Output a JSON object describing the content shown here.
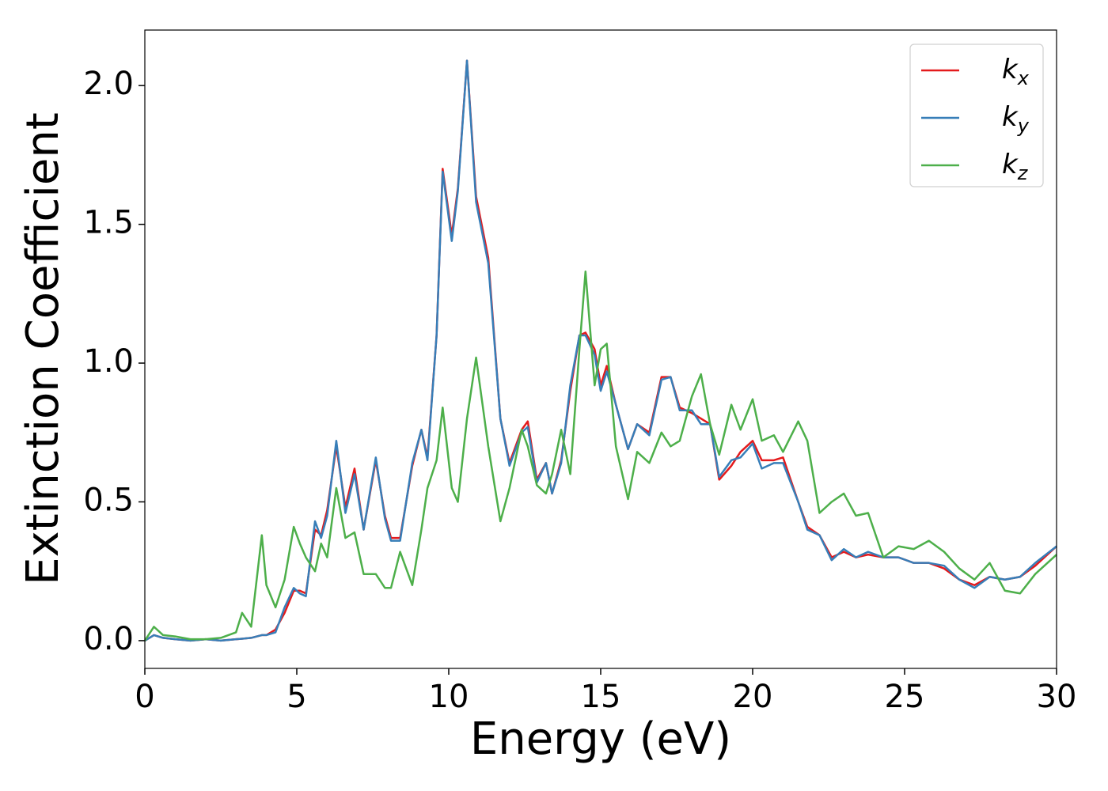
{
  "chart_data": {
    "type": "line",
    "x_label": "Energy (eV)",
    "y_label": "Extinction Coefficient",
    "x": [
      0,
      0.3,
      0.6,
      1,
      1.5,
      2,
      2.5,
      3,
      3.2,
      3.5,
      3.85,
      4,
      4.3,
      4.6,
      4.9,
      5.1,
      5.3,
      5.6,
      5.8,
      6,
      6.3,
      6.6,
      6.9,
      7.2,
      7.6,
      7.9,
      8.1,
      8.4,
      8.8,
      9.1,
      9.3,
      9.6,
      9.8,
      10.1,
      10.3,
      10.6,
      10.9,
      11.3,
      11.7,
      12,
      12.4,
      12.6,
      12.9,
      13.2,
      13.4,
      13.7,
      14,
      14.3,
      14.5,
      14.8,
      15,
      15.2,
      15.5,
      15.9,
      16.2,
      16.6,
      17,
      17.3,
      17.6,
      18,
      18.3,
      18.6,
      18.9,
      19.3,
      19.6,
      20,
      20.3,
      20.7,
      21,
      21.5,
      21.8,
      22.2,
      22.6,
      23,
      23.4,
      23.8,
      24.3,
      24.8,
      25.3,
      25.8,
      26.3,
      26.8,
      27.3,
      27.8,
      28.3,
      28.8,
      29.3,
      30
    ],
    "series": [
      {
        "name": "kx",
        "color": "#e41a1c",
        "values": [
          0,
          0.02,
          0.01,
          0.005,
          0,
          0.005,
          0,
          0.005,
          0.007,
          0.01,
          0.02,
          0.02,
          0.04,
          0.1,
          0.18,
          0.18,
          0.17,
          0.4,
          0.38,
          0.47,
          0.7,
          0.48,
          0.62,
          0.4,
          0.65,
          0.45,
          0.37,
          0.37,
          0.63,
          0.76,
          0.66,
          1.1,
          1.7,
          1.46,
          1.63,
          2.09,
          1.6,
          1.38,
          0.8,
          0.64,
          0.76,
          0.79,
          0.58,
          0.64,
          0.53,
          0.65,
          0.9,
          1.1,
          1.11,
          1.05,
          0.92,
          0.99,
          0.85,
          0.69,
          0.78,
          0.75,
          0.95,
          0.95,
          0.84,
          0.82,
          0.8,
          0.78,
          0.58,
          0.63,
          0.68,
          0.72,
          0.65,
          0.65,
          0.66,
          0.5,
          0.41,
          0.38,
          0.3,
          0.32,
          0.3,
          0.31,
          0.3,
          0.3,
          0.28,
          0.28,
          0.26,
          0.22,
          0.2,
          0.23,
          0.22,
          0.23,
          0.27,
          0.34
        ]
      },
      {
        "name": "ky",
        "color": "#377eb8",
        "values": [
          0,
          0.02,
          0.01,
          0.005,
          0,
          0.005,
          0,
          0.005,
          0.007,
          0.01,
          0.02,
          0.02,
          0.03,
          0.12,
          0.19,
          0.17,
          0.16,
          0.43,
          0.37,
          0.45,
          0.72,
          0.46,
          0.6,
          0.4,
          0.66,
          0.44,
          0.36,
          0.36,
          0.64,
          0.76,
          0.65,
          1.1,
          1.69,
          1.44,
          1.62,
          2.09,
          1.58,
          1.36,
          0.8,
          0.63,
          0.75,
          0.77,
          0.57,
          0.64,
          0.53,
          0.64,
          0.92,
          1.1,
          1.1,
          1.03,
          0.9,
          0.97,
          0.85,
          0.69,
          0.78,
          0.74,
          0.94,
          0.95,
          0.83,
          0.83,
          0.78,
          0.78,
          0.59,
          0.65,
          0.66,
          0.71,
          0.62,
          0.64,
          0.64,
          0.5,
          0.4,
          0.38,
          0.29,
          0.33,
          0.3,
          0.32,
          0.3,
          0.3,
          0.28,
          0.28,
          0.27,
          0.22,
          0.19,
          0.23,
          0.22,
          0.23,
          0.28,
          0.34
        ]
      },
      {
        "name": "kz",
        "color": "#4daf4a",
        "values": [
          0,
          0.05,
          0.02,
          0.015,
          0.005,
          0.005,
          0.01,
          0.03,
          0.1,
          0.05,
          0.38,
          0.2,
          0.12,
          0.22,
          0.41,
          0.35,
          0.3,
          0.25,
          0.35,
          0.3,
          0.55,
          0.37,
          0.39,
          0.24,
          0.24,
          0.19,
          0.19,
          0.32,
          0.2,
          0.4,
          0.55,
          0.65,
          0.84,
          0.55,
          0.5,
          0.8,
          1.02,
          0.7,
          0.43,
          0.55,
          0.76,
          0.7,
          0.56,
          0.53,
          0.6,
          0.76,
          0.6,
          1.05,
          1.33,
          0.92,
          1.05,
          1.07,
          0.7,
          0.51,
          0.68,
          0.64,
          0.75,
          0.7,
          0.72,
          0.88,
          0.96,
          0.78,
          0.67,
          0.85,
          0.76,
          0.87,
          0.72,
          0.74,
          0.68,
          0.79,
          0.72,
          0.46,
          0.5,
          0.53,
          0.45,
          0.46,
          0.3,
          0.34,
          0.33,
          0.36,
          0.32,
          0.26,
          0.22,
          0.28,
          0.18,
          0.17,
          0.24,
          0.31
        ]
      }
    ],
    "xlim": [
      0,
      30
    ],
    "xticks": [
      0,
      5,
      10,
      15,
      20,
      25,
      30
    ],
    "ylim": [
      -0.1,
      2.2
    ],
    "yticks": [
      {
        "value": 0,
        "label": "0.0"
      },
      0.5,
      {
        "value": 1,
        "label": "1.0"
      },
      1.5,
      {
        "value": 2,
        "label": "2.0"
      }
    ],
    "legend": "upper right",
    "grid": false
  }
}
